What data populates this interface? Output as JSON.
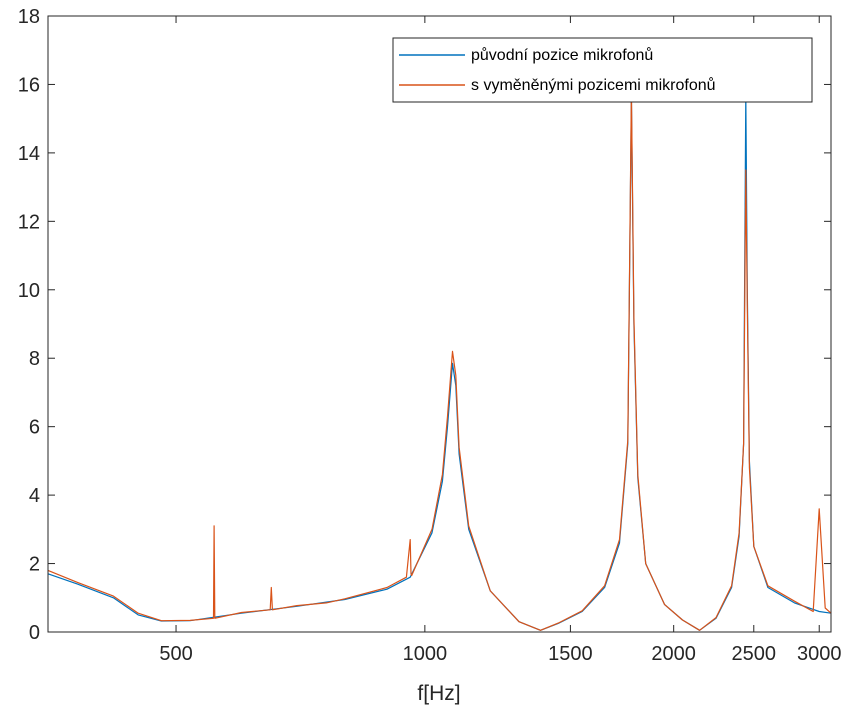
{
  "chart_data": {
    "type": "line",
    "title": "",
    "xlabel": "f[Hz]",
    "ylabel": "",
    "x_scale": "log",
    "xlim": [
      350,
      3100
    ],
    "ylim": [
      0,
      18
    ],
    "grid": false,
    "legend_position": "top-right",
    "x_ticks": [
      500,
      1000,
      1500,
      2000,
      2500,
      3000
    ],
    "x_tick_labels": [
      "500",
      "1000",
      "1500",
      "2000",
      "2500",
      "3000"
    ],
    "y_ticks": [
      0,
      2,
      4,
      6,
      8,
      10,
      12,
      14,
      16,
      18
    ],
    "y_tick_labels": [
      "0",
      "2",
      "4",
      "6",
      "8",
      "10",
      "12",
      "14",
      "16",
      "18"
    ],
    "series": [
      {
        "name": "původní pozice mikrofonů",
        "color": "#0072BD",
        "x": [
          350,
          380,
          420,
          450,
          480,
          520,
          600,
          700,
          800,
          900,
          960,
          1020,
          1050,
          1065,
          1080,
          1090,
          1100,
          1130,
          1200,
          1300,
          1380,
          1450,
          1550,
          1650,
          1720,
          1760,
          1778,
          1790,
          1810,
          1850,
          1950,
          2050,
          2150,
          2250,
          2350,
          2400,
          2430,
          2445,
          2455,
          2470,
          2500,
          2600,
          2800,
          3000,
          3100
        ],
        "y": [
          1.7,
          1.4,
          1.0,
          0.5,
          0.32,
          0.33,
          0.55,
          0.75,
          0.95,
          1.25,
          1.6,
          2.9,
          4.4,
          6.0,
          7.85,
          7.2,
          5.2,
          3.0,
          1.2,
          0.3,
          0.05,
          0.25,
          0.6,
          1.3,
          2.6,
          5.5,
          15.6,
          9.0,
          4.5,
          2.0,
          0.8,
          0.35,
          0.05,
          0.4,
          1.3,
          2.8,
          5.5,
          15.7,
          10.0,
          5.0,
          2.5,
          1.3,
          0.85,
          0.6,
          0.55
        ]
      },
      {
        "name": "s vyměněnými pozicemi mikrofonů",
        "color": "#D95319",
        "x": [
          350,
          380,
          420,
          450,
          480,
          520,
          555,
          556,
          557,
          600,
          650,
          652,
          654,
          700,
          760,
          800,
          900,
          950,
          960,
          962,
          964,
          1020,
          1050,
          1065,
          1080,
          1090,
          1100,
          1130,
          1200,
          1300,
          1380,
          1450,
          1550,
          1650,
          1720,
          1760,
          1778,
          1790,
          1810,
          1850,
          1950,
          2050,
          2150,
          2250,
          2350,
          2400,
          2430,
          2445,
          2455,
          2470,
          2500,
          2600,
          2800,
          2950,
          3000,
          3050,
          3100
        ],
        "y": [
          1.8,
          1.45,
          1.05,
          0.55,
          0.33,
          0.34,
          0.4,
          3.1,
          0.4,
          0.57,
          0.65,
          1.3,
          0.65,
          0.77,
          0.85,
          0.97,
          1.3,
          1.6,
          2.7,
          1.7,
          1.65,
          3.0,
          4.6,
          6.3,
          8.2,
          7.5,
          5.4,
          3.1,
          1.2,
          0.3,
          0.05,
          0.26,
          0.62,
          1.35,
          2.7,
          5.6,
          15.8,
          9.2,
          4.6,
          2.0,
          0.8,
          0.35,
          0.05,
          0.42,
          1.35,
          2.9,
          5.5,
          13.5,
          9.5,
          4.8,
          2.5,
          1.35,
          0.9,
          0.6,
          3.6,
          0.7,
          0.55
        ]
      }
    ]
  }
}
